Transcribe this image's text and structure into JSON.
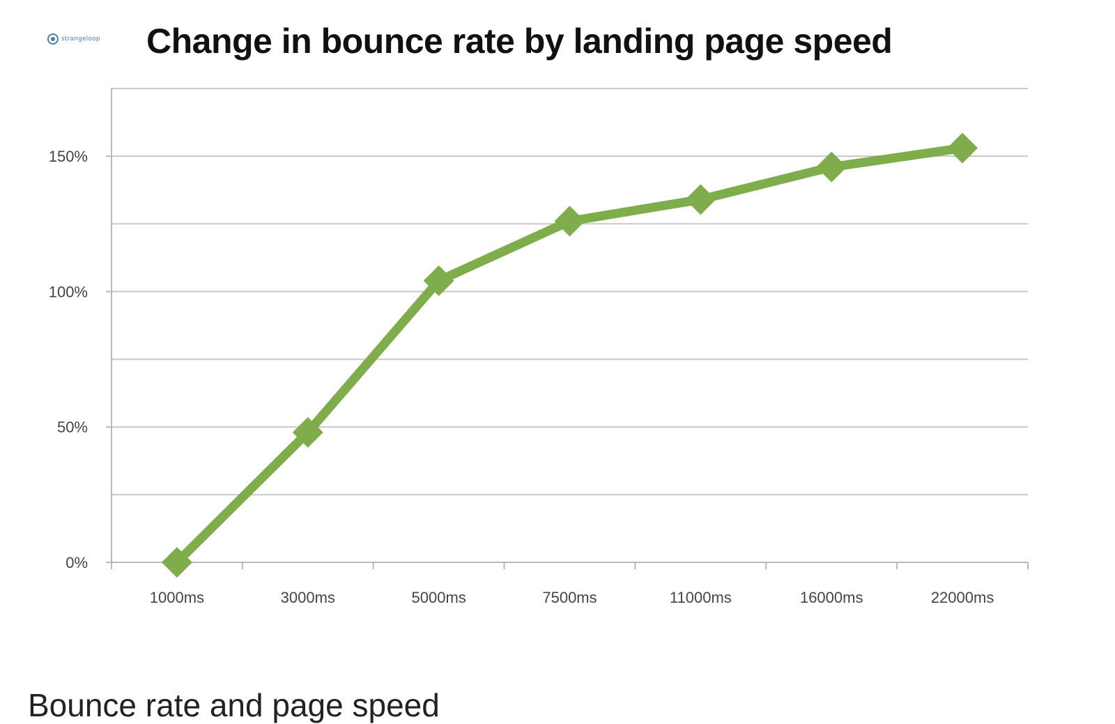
{
  "logo": {
    "text": "strangeloop"
  },
  "caption": "Bounce rate and page speed",
  "chart_data": {
    "type": "line",
    "title": "Change in bounce rate by landing page speed",
    "xlabel": "",
    "ylabel": "",
    "categories": [
      "1000ms",
      "3000ms",
      "5000ms",
      "7500ms",
      "11000ms",
      "16000ms",
      "22000ms"
    ],
    "series": [
      {
        "values": [
          0,
          48,
          104,
          126,
          134,
          146,
          153
        ],
        "color": "#7fad4c"
      }
    ],
    "ylim": [
      0,
      175
    ],
    "yticks": [
      0,
      50,
      100,
      150
    ],
    "ytick_labels": [
      "0%",
      "50%",
      "100%",
      "150%"
    ],
    "grid": true,
    "marker": "diamond",
    "legend": "none"
  }
}
